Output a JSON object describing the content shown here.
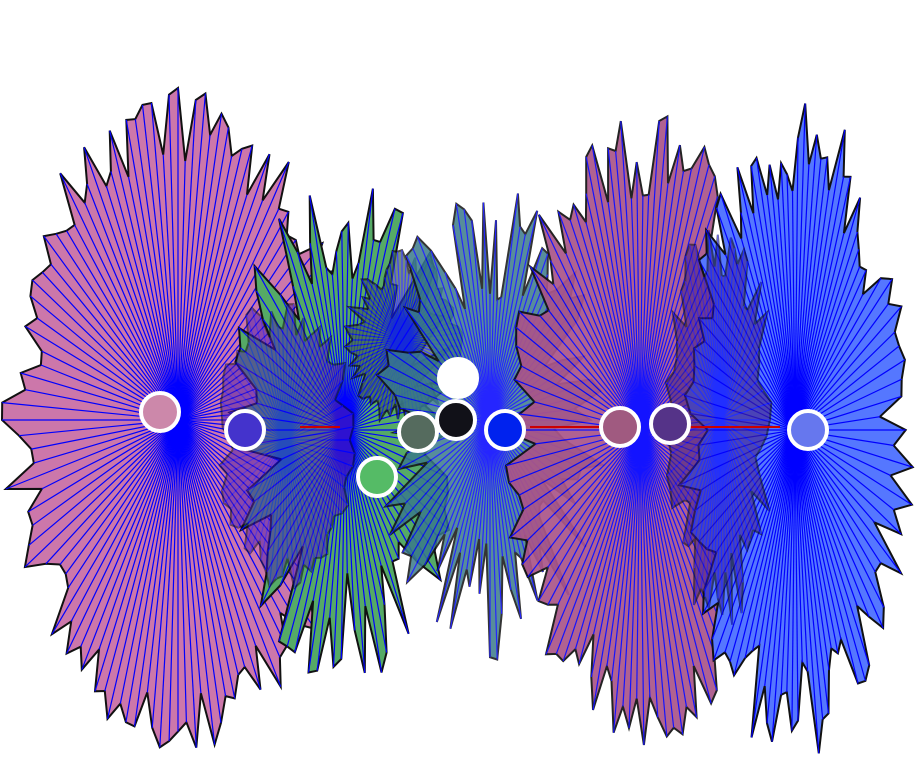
{
  "scene": {
    "background": "#ffffff",
    "ray_color": "#0000ff",
    "outline_color": "#111111",
    "marker_stroke": "#ffffff",
    "connector_color": "#cc0000"
  },
  "bursts": [
    {
      "name": "pink-burst-left",
      "fill": "#cc77aa",
      "opacity": 1.0,
      "rays": 120,
      "seed": 11
    },
    {
      "name": "green-burst-left",
      "fill": "#55aa66",
      "opacity": 1.0,
      "rays": 90,
      "seed": 23
    },
    {
      "name": "slate-burst-left",
      "fill": "#446655",
      "opacity": 0.75,
      "rays": 80,
      "seed": 31
    },
    {
      "name": "indigo-burst-left",
      "fill": "#5522aa",
      "opacity": 0.55,
      "rays": 70,
      "seed": 37
    },
    {
      "name": "teal-burst-center",
      "fill": "#3a7a8a",
      "opacity": 0.85,
      "rays": 100,
      "seed": 41
    },
    {
      "name": "mauve-burst-right",
      "fill": "#aa5588",
      "opacity": 0.92,
      "rays": 110,
      "seed": 53
    },
    {
      "name": "blue-burst-right",
      "fill": "#5577ff",
      "opacity": 1.0,
      "rays": 110,
      "seed": 61
    },
    {
      "name": "purple-burst-right",
      "fill": "#442288",
      "opacity": 0.6,
      "rays": 70,
      "seed": 71
    }
  ],
  "markers": [
    {
      "name": "marker-pink",
      "color": "#cc88aa"
    },
    {
      "name": "marker-indigo",
      "color": "#4433cc"
    },
    {
      "name": "marker-green",
      "color": "#55bb66"
    },
    {
      "name": "marker-slate",
      "color": "#556b5e"
    },
    {
      "name": "marker-white",
      "color": "#ffffff"
    },
    {
      "name": "marker-black",
      "color": "#111118"
    },
    {
      "name": "marker-blue",
      "color": "#0022ee"
    },
    {
      "name": "marker-mauve",
      "color": "#a05a80"
    },
    {
      "name": "marker-purple",
      "color": "#553388"
    },
    {
      "name": "marker-lightblue",
      "color": "#6677ee"
    }
  ],
  "connectors": [
    {
      "name": "connector-green-slate"
    },
    {
      "name": "connector-blue-mauve"
    },
    {
      "name": "connector-purple-lightblue"
    }
  ]
}
